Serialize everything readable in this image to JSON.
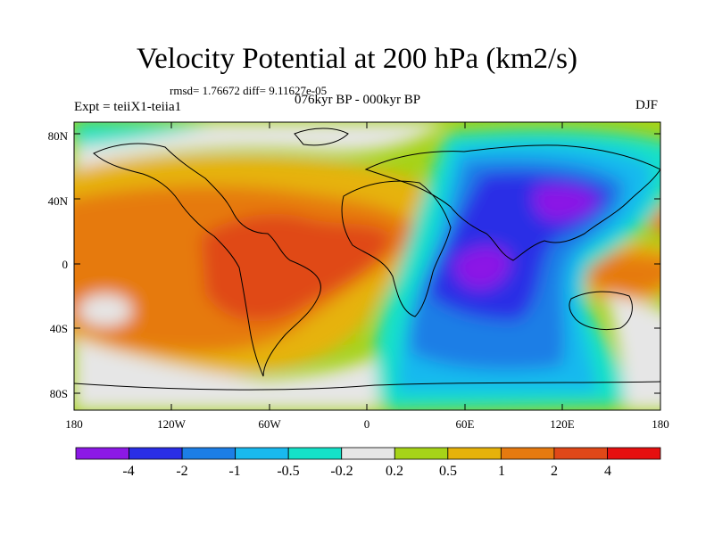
{
  "title": "Velocity Potential at 200 hPa (km2/s)",
  "stats": "rmsd= 1.76672 diff= 9.11627e-05",
  "experiment": "Expt = teiiX1-teiia1",
  "period": "076kyr BP - 000kyr BP",
  "season": "DJF",
  "axes": {
    "x_ticks": [
      "180",
      "120W",
      "60W",
      "0",
      "60E",
      "120E",
      "180"
    ],
    "y_ticks": [
      "80N",
      "40N",
      "0",
      "40S",
      "80S"
    ]
  },
  "colorbar": {
    "labels": [
      "-4",
      "-2",
      "-1",
      "-0.5",
      "-0.2",
      "0.2",
      "0.5",
      "1",
      "2",
      "4"
    ],
    "colors": [
      "#8c18e6",
      "#2a2ee6",
      "#1c7ee6",
      "#19b9ee",
      "#14e1c8",
      "#e6e6e6",
      "#a6d318",
      "#e6b20a",
      "#e67a10",
      "#e04818",
      "#e61010"
    ]
  }
}
